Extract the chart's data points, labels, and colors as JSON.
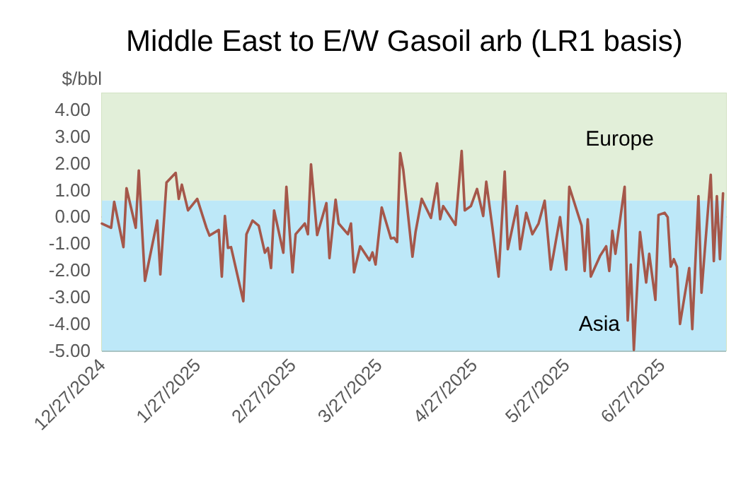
{
  "chart_data": {
    "type": "line",
    "title": "Middle East to E/W Gasoil arb (LR1 basis)",
    "ylabel": "$/bbl",
    "x": [
      "2024-12-27",
      "2024-12-30",
      "2024-12-31",
      "2025-01-03",
      "2025-01-04",
      "2025-01-07",
      "2025-01-08",
      "2025-01-10",
      "2025-01-14",
      "2025-01-15",
      "2025-01-17",
      "2025-01-20",
      "2025-01-21",
      "2025-01-22",
      "2025-01-24",
      "2025-01-27",
      "2025-01-30",
      "2025-01-31",
      "2025-02-03",
      "2025-02-04",
      "2025-02-05",
      "2025-02-06",
      "2025-02-07",
      "2025-02-11",
      "2025-02-12",
      "2025-02-14",
      "2025-02-16",
      "2025-02-18",
      "2025-02-19",
      "2025-02-20",
      "2025-02-21",
      "2025-02-24",
      "2025-02-25",
      "2025-02-27",
      "2025-02-28",
      "2025-03-03",
      "2025-03-04",
      "2025-03-05",
      "2025-03-07",
      "2025-03-10",
      "2025-03-11",
      "2025-03-13",
      "2025-03-14",
      "2025-03-17",
      "2025-03-18",
      "2025-03-19",
      "2025-03-21",
      "2025-03-24",
      "2025-03-25",
      "2025-03-26",
      "2025-03-28",
      "2025-03-31",
      "2025-04-01",
      "2025-04-02",
      "2025-04-03",
      "2025-04-04",
      "2025-04-07",
      "2025-04-08",
      "2025-04-10",
      "2025-04-13",
      "2025-04-15",
      "2025-04-16",
      "2025-04-17",
      "2025-04-21",
      "2025-04-23",
      "2025-04-24",
      "2025-04-26",
      "2025-04-28",
      "2025-04-30",
      "2025-05-01",
      "2025-05-03",
      "2025-05-05",
      "2025-05-07",
      "2025-05-08",
      "2025-05-11",
      "2025-05-12",
      "2025-05-14",
      "2025-05-16",
      "2025-05-18",
      "2025-05-20",
      "2025-05-22",
      "2025-05-25",
      "2025-05-27",
      "2025-05-28",
      "2025-06-01",
      "2025-06-02",
      "2025-06-03",
      "2025-06-04",
      "2025-06-07",
      "2025-06-09",
      "2025-06-10",
      "2025-06-11",
      "2025-06-12",
      "2025-06-15",
      "2025-06-16",
      "2025-06-17",
      "2025-06-18",
      "2025-06-20",
      "2025-06-22",
      "2025-06-23",
      "2025-06-25",
      "2025-06-26",
      "2025-06-28",
      "2025-06-29",
      "2025-06-30",
      "2025-07-01",
      "2025-07-02",
      "2025-07-03",
      "2025-07-06",
      "2025-07-07",
      "2025-07-09",
      "2025-07-10",
      "2025-07-13",
      "2025-07-14",
      "2025-07-15",
      "2025-07-16",
      "2025-07-17"
    ],
    "series": [
      {
        "color": "#a5574a",
        "values": [
          -0.26,
          -0.42,
          0.55,
          -1.14,
          1.06,
          -0.42,
          1.72,
          -2.4,
          -0.15,
          -2.16,
          1.27,
          1.63,
          0.66,
          1.19,
          0.23,
          0.66,
          -0.42,
          -0.71,
          -0.5,
          -2.24,
          0.02,
          -1.17,
          -1.14,
          -3.16,
          -0.66,
          -0.15,
          -0.34,
          -1.35,
          -1.17,
          -1.92,
          0.23,
          -1.35,
          1.11,
          -2.08,
          -0.66,
          -0.26,
          -0.66,
          1.95,
          -0.69,
          0.5,
          -1.55,
          0.63,
          -0.26,
          -0.66,
          -0.26,
          -2.08,
          -1.11,
          -1.63,
          -1.34,
          -1.79,
          0.34,
          -0.82,
          -0.79,
          -0.95,
          2.37,
          1.75,
          -1.5,
          -0.58,
          0.66,
          -0.05,
          1.24,
          -0.1,
          0.39,
          -0.31,
          2.45,
          0.23,
          0.39,
          1.03,
          0.02,
          1.3,
          -0.42,
          -2.24,
          1.68,
          -1.22,
          0.39,
          -1.22,
          0.14,
          -0.66,
          -0.26,
          0.59,
          -1.98,
          -0.02,
          -1.98,
          1.11,
          -0.34,
          -2.03,
          -0.1,
          -2.24,
          -1.47,
          -1.11,
          -2.03,
          -0.53,
          -1.39,
          1.11,
          -3.88,
          -1.79,
          -4.98,
          -0.58,
          -2.46,
          -1.39,
          -3.11,
          0.06,
          0.14,
          -0.02,
          -1.87,
          -1.59,
          -1.87,
          -4.01,
          -1.92,
          -4.2,
          0.76,
          -2.84,
          1.56,
          -1.66,
          0.76,
          -1.59,
          0.87
        ]
      }
    ],
    "xlim": [
      "2024-12-27",
      "2025-07-18"
    ],
    "xticks": [
      {
        "value": "2024-12-27",
        "label": "12/27/2024"
      },
      {
        "value": "2025-01-27",
        "label": "1/27/2025"
      },
      {
        "value": "2025-02-27",
        "label": "2/27/2025"
      },
      {
        "value": "2025-03-27",
        "label": "3/27/2025"
      },
      {
        "value": "2025-04-27",
        "label": "4/27/2025"
      },
      {
        "value": "2025-05-27",
        "label": "5/27/2025"
      },
      {
        "value": "2025-06-27",
        "label": "6/27/2025"
      }
    ],
    "ylim": [
      -5,
      4.6
    ],
    "yticks": [
      {
        "value": -5,
        "label": "-5.00"
      },
      {
        "value": -4,
        "label": "-4.00"
      },
      {
        "value": -3,
        "label": "-3.00"
      },
      {
        "value": -2,
        "label": "-2.00"
      },
      {
        "value": -1,
        "label": "-1.00"
      },
      {
        "value": 0,
        "label": "0.00"
      },
      {
        "value": 1,
        "label": "1.00"
      },
      {
        "value": 2,
        "label": "2.00"
      },
      {
        "value": 3,
        "label": "3.00"
      },
      {
        "value": 4,
        "label": "4.00"
      }
    ],
    "bands": [
      {
        "axis": "y",
        "from": 0.6,
        "to": 4.6,
        "label": "Europe",
        "color": "#e2efd9"
      },
      {
        "axis": "y",
        "from": -5,
        "to": 0.6,
        "label": "Asia",
        "color": "#bde8f8"
      }
    ],
    "grid": "y",
    "marker": "none",
    "line_style": "solid"
  }
}
